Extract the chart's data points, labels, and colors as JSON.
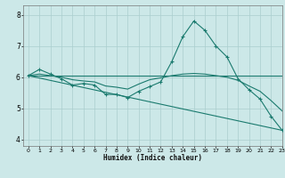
{
  "xlabel": "Humidex (Indice chaleur)",
  "xlim": [
    -0.5,
    23
  ],
  "ylim": [
    3.8,
    8.3
  ],
  "xticks": [
    0,
    1,
    2,
    3,
    4,
    5,
    6,
    7,
    8,
    9,
    10,
    11,
    12,
    13,
    14,
    15,
    16,
    17,
    18,
    19,
    20,
    21,
    22,
    23
  ],
  "yticks": [
    4,
    5,
    6,
    7,
    8
  ],
  "bg_color": "#cce8e8",
  "line_color": "#1a7a6e",
  "grid_color": "#aacece",
  "line_marked": {
    "x": [
      0,
      1,
      2,
      3,
      4,
      5,
      6,
      7,
      8,
      9,
      10,
      11,
      12,
      13,
      14,
      15,
      16,
      17,
      18,
      19,
      20,
      21,
      22,
      23
    ],
    "y": [
      6.05,
      6.25,
      6.1,
      5.95,
      5.75,
      5.8,
      5.75,
      5.45,
      5.45,
      5.35,
      5.55,
      5.7,
      5.85,
      6.5,
      7.3,
      7.8,
      7.5,
      7.0,
      6.65,
      5.95,
      5.6,
      5.3,
      4.75,
      4.3
    ]
  },
  "line_flat": {
    "x": [
      0,
      23
    ],
    "y": [
      6.05,
      6.05
    ]
  },
  "line_mid": {
    "x": [
      0,
      1,
      2,
      3,
      4,
      5,
      6,
      7,
      8,
      9,
      10,
      11,
      12,
      13,
      14,
      15,
      16,
      17,
      18,
      19,
      20,
      21,
      22,
      23
    ],
    "y": [
      6.05,
      6.1,
      6.05,
      6.0,
      5.92,
      5.88,
      5.85,
      5.72,
      5.68,
      5.62,
      5.78,
      5.92,
      5.98,
      6.05,
      6.1,
      6.12,
      6.1,
      6.05,
      6.0,
      5.9,
      5.72,
      5.55,
      5.25,
      4.92
    ]
  },
  "line_diag": {
    "x": [
      0,
      23
    ],
    "y": [
      6.05,
      4.3
    ]
  }
}
